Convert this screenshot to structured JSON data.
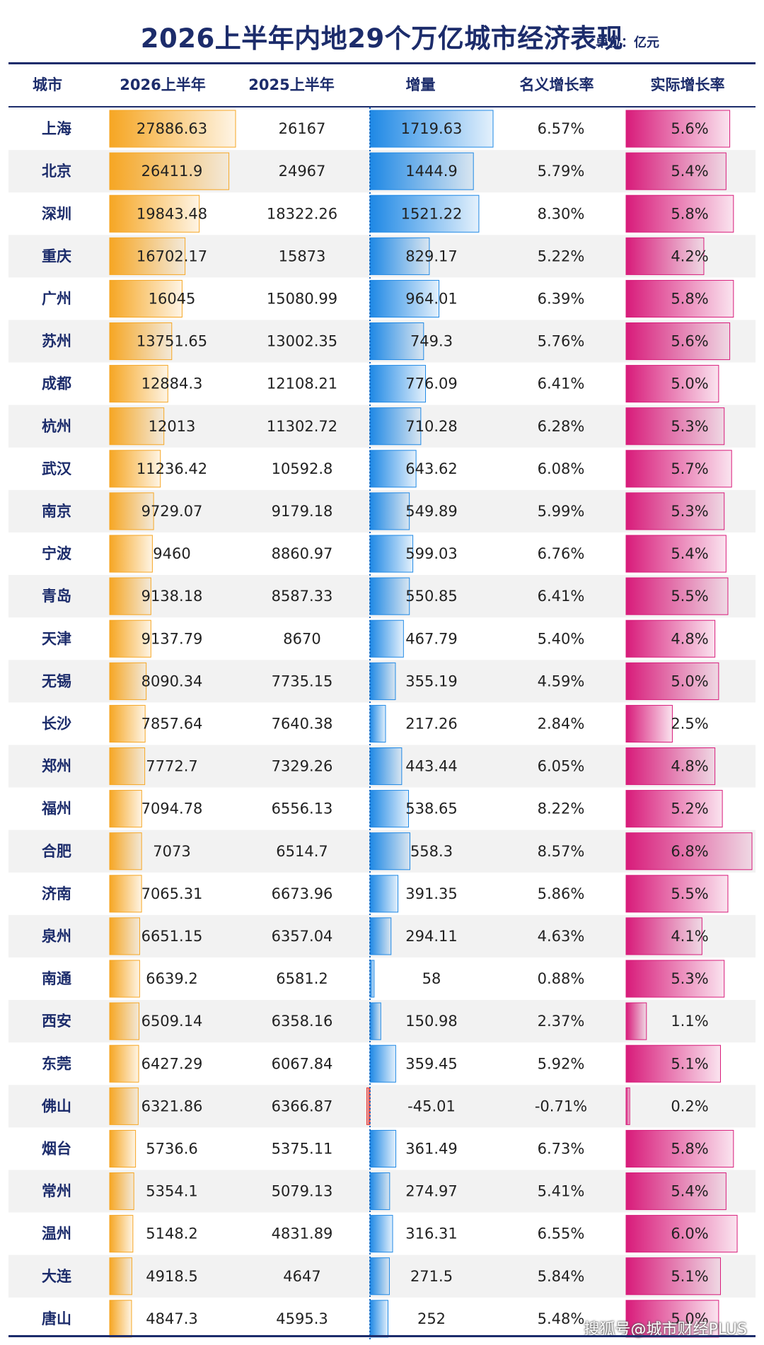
{
  "title": "2026上半年内地29个万亿城市经济表现",
  "unit": "单位：亿元",
  "watermark": "搜狐号@城市财经PLUS",
  "headers": [
    "城市",
    "2026上半年",
    "2025上半年",
    "增量",
    "名义增长率",
    "实际增长率"
  ],
  "colors": {
    "title": "#1c2c6b",
    "gdp_bar": "#f6a623",
    "increment_bar": "#1e88e5",
    "negative_bar": "#e53935",
    "real_growth_bar": "#d81b7a",
    "row_alt": "#f2f2f2"
  },
  "chart_data": {
    "type": "table",
    "columns": [
      "城市",
      "2026上半年",
      "2025上半年",
      "增量",
      "名义增长率",
      "实际增长率"
    ],
    "rows": [
      [
        "上海",
        "27886.63",
        "26167",
        "1719.63",
        "6.57%",
        "5.6%"
      ],
      [
        "北京",
        "26411.9",
        "24967",
        "1444.9",
        "5.79%",
        "5.4%"
      ],
      [
        "深圳",
        "19843.48",
        "18322.26",
        "1521.22",
        "8.30%",
        "5.8%"
      ],
      [
        "重庆",
        "16702.17",
        "15873",
        "829.17",
        "5.22%",
        "4.2%"
      ],
      [
        "广州",
        "16045",
        "15080.99",
        "964.01",
        "6.39%",
        "5.8%"
      ],
      [
        "苏州",
        "13751.65",
        "13002.35",
        "749.3",
        "5.76%",
        "5.6%"
      ],
      [
        "成都",
        "12884.3",
        "12108.21",
        "776.09",
        "6.41%",
        "5.0%"
      ],
      [
        "杭州",
        "12013",
        "11302.72",
        "710.28",
        "6.28%",
        "5.3%"
      ],
      [
        "武汉",
        "11236.42",
        "10592.8",
        "643.62",
        "6.08%",
        "5.7%"
      ],
      [
        "南京",
        "9729.07",
        "9179.18",
        "549.89",
        "5.99%",
        "5.3%"
      ],
      [
        "宁波",
        "9460",
        "8860.97",
        "599.03",
        "6.76%",
        "5.4%"
      ],
      [
        "青岛",
        "9138.18",
        "8587.33",
        "550.85",
        "6.41%",
        "5.5%"
      ],
      [
        "天津",
        "9137.79",
        "8670",
        "467.79",
        "5.40%",
        "4.8%"
      ],
      [
        "无锡",
        "8090.34",
        "7735.15",
        "355.19",
        "4.59%",
        "5.0%"
      ],
      [
        "长沙",
        "7857.64",
        "7640.38",
        "217.26",
        "2.84%",
        "2.5%"
      ],
      [
        "郑州",
        "7772.7",
        "7329.26",
        "443.44",
        "6.05%",
        "4.8%"
      ],
      [
        "福州",
        "7094.78",
        "6556.13",
        "538.65",
        "8.22%",
        "5.2%"
      ],
      [
        "合肥",
        "7073",
        "6514.7",
        "558.3",
        "8.57%",
        "6.8%"
      ],
      [
        "济南",
        "7065.31",
        "6673.96",
        "391.35",
        "5.86%",
        "5.5%"
      ],
      [
        "泉州",
        "6651.15",
        "6357.04",
        "294.11",
        "4.63%",
        "4.1%"
      ],
      [
        "南通",
        "6639.2",
        "6581.2",
        "58",
        "0.88%",
        "5.3%"
      ],
      [
        "西安",
        "6509.14",
        "6358.16",
        "150.98",
        "2.37%",
        "1.1%"
      ],
      [
        "东莞",
        "6427.29",
        "6067.84",
        "359.45",
        "5.92%",
        "5.1%"
      ],
      [
        "佛山",
        "6321.86",
        "6366.87",
        "-45.01",
        "-0.71%",
        "0.2%"
      ],
      [
        "烟台",
        "5736.6",
        "5375.11",
        "361.49",
        "6.73%",
        "5.8%"
      ],
      [
        "常州",
        "5354.1",
        "5079.13",
        "274.97",
        "5.41%",
        "5.4%"
      ],
      [
        "温州",
        "5148.2",
        "4831.89",
        "316.31",
        "6.55%",
        "6.0%"
      ],
      [
        "大连",
        "4918.5",
        "4647",
        "271.5",
        "5.84%",
        "5.1%"
      ],
      [
        "唐山",
        "4847.3",
        "4595.3",
        "252",
        "5.48%",
        "5.0%"
      ]
    ],
    "bar_scales": {
      "gdp_max": 27886.63,
      "increment_max": 1719.63,
      "real_growth_max": 6.8
    }
  }
}
